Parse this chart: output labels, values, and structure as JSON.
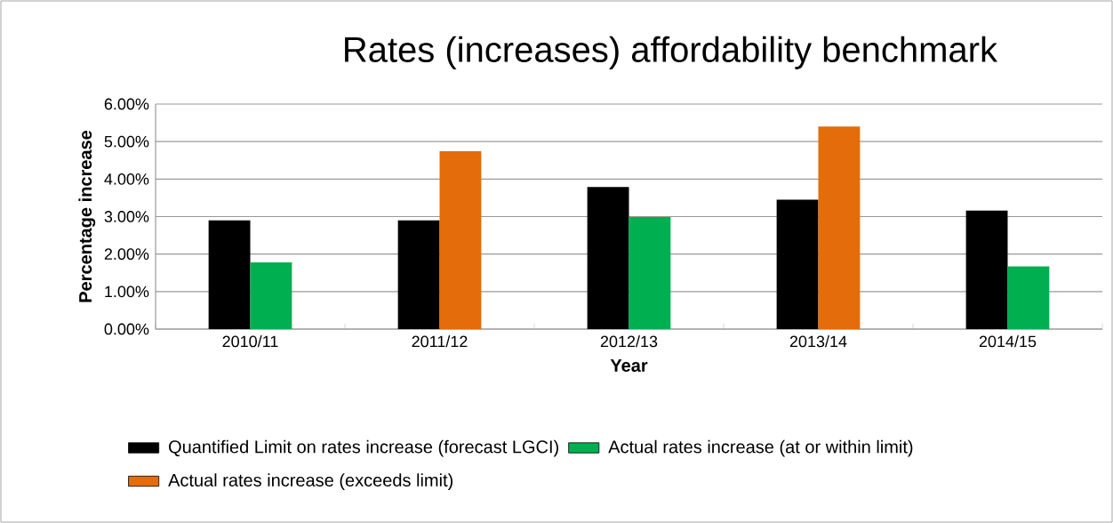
{
  "chart_data": {
    "type": "bar",
    "title": "Rates (increases) affordability benchmark",
    "xlabel": "Year",
    "ylabel": "Percentage increase",
    "categories": [
      "2010/11",
      "2011/12",
      "2012/13",
      "2013/14",
      "2014/15"
    ],
    "series": [
      {
        "name": "Quantified Limit on rates increase (forecast LGCI)",
        "color": "#000000",
        "values": [
          2.9,
          2.9,
          3.79,
          3.45,
          3.16
        ]
      },
      {
        "name": "Actual rates increase (at or within limit)",
        "color": "#00b050",
        "values": [
          1.78,
          null,
          2.99,
          null,
          1.67
        ]
      },
      {
        "name": "Actual rates increase (exceeds limit)",
        "color": "#e46c0a",
        "values": [
          null,
          4.74,
          null,
          5.4,
          null
        ]
      }
    ],
    "ylim": [
      0,
      6
    ],
    "yticks": [
      {
        "value": 0,
        "label": "0.00%"
      },
      {
        "value": 1,
        "label": "1.00%"
      },
      {
        "value": 2,
        "label": "2.00%"
      },
      {
        "value": 3,
        "label": "3.00%"
      },
      {
        "value": 4,
        "label": "4.00%"
      },
      {
        "value": 5,
        "label": "5.00%"
      },
      {
        "value": 6,
        "label": "6.00%"
      }
    ],
    "grid": "y",
    "legend": "bottom"
  }
}
